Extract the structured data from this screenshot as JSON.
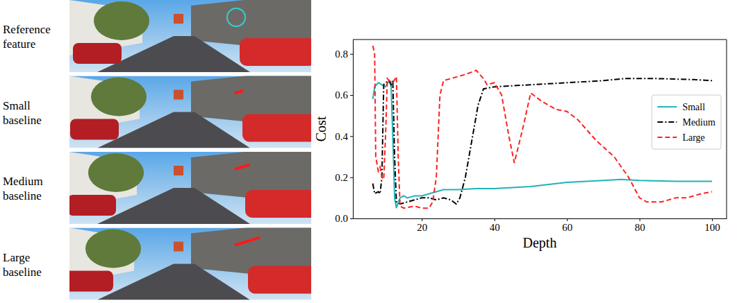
{
  "chart_data": {
    "type": "line",
    "xlabel": "Depth",
    "ylabel": "Cost",
    "xlim": [
      1,
      104
    ],
    "ylim": [
      0,
      0.87
    ],
    "xticks": [
      20,
      40,
      60,
      80,
      100
    ],
    "yticks": [
      {
        "value": 0,
        "label": "0.0"
      },
      0.2,
      0.4,
      0.6,
      0.8
    ],
    "grid": false,
    "legend": "center right",
    "series": [
      {
        "name": "Small",
        "color": "#1fb3b8",
        "line_style": "solid",
        "x": [
          6.5,
          7,
          8,
          9,
          10,
          11,
          11.5,
          12,
          12.5,
          13,
          13.5,
          14,
          15,
          16,
          18,
          20,
          22,
          24,
          26,
          30,
          35,
          40,
          50,
          60,
          70,
          75,
          80,
          90,
          100
        ],
        "values": [
          0.58,
          0.64,
          0.66,
          0.65,
          0.64,
          0.67,
          0.66,
          0.4,
          0.1,
          0.05,
          0.08,
          0.1,
          0.11,
          0.1,
          0.11,
          0.11,
          0.12,
          0.13,
          0.14,
          0.14,
          0.145,
          0.145,
          0.155,
          0.175,
          0.185,
          0.19,
          0.185,
          0.18,
          0.18
        ]
      },
      {
        "name": "Medium",
        "color": "#000000",
        "line_style": "dashdot",
        "x": [
          6.5,
          7,
          8,
          8.5,
          9,
          9.5,
          10,
          11,
          11.5,
          12,
          12.5,
          13,
          14,
          16,
          18,
          20,
          22,
          24,
          26,
          28,
          29.5,
          30.5,
          32,
          34,
          35.5,
          37,
          40,
          50,
          60,
          70,
          76,
          85,
          95,
          100
        ],
        "values": [
          0.17,
          0.12,
          0.13,
          0.12,
          0.2,
          0.65,
          0.66,
          0.67,
          0.65,
          0.67,
          0.3,
          0.08,
          0.07,
          0.08,
          0.09,
          0.1,
          0.1,
          0.09,
          0.1,
          0.09,
          0.07,
          0.1,
          0.2,
          0.4,
          0.55,
          0.63,
          0.64,
          0.65,
          0.66,
          0.67,
          0.68,
          0.68,
          0.675,
          0.67
        ]
      },
      {
        "name": "Large",
        "color": "#ff2020",
        "line_style": "dashed",
        "x": [
          6.5,
          7,
          7.3,
          8,
          8.5,
          9,
          9.5,
          10,
          10.5,
          11,
          12,
          13,
          13.5,
          14,
          15,
          18,
          20,
          22,
          23,
          24,
          25,
          26,
          28,
          32,
          35,
          37,
          38,
          40,
          42,
          44,
          45.5,
          48,
          50,
          53,
          57,
          60,
          63,
          68,
          73,
          77,
          80,
          82,
          86,
          90,
          93,
          97,
          100
        ],
        "values": [
          0.84,
          0.8,
          0.3,
          0.23,
          0.25,
          0.2,
          0.19,
          0.4,
          0.68,
          0.67,
          0.66,
          0.69,
          0.3,
          0.06,
          0.05,
          0.06,
          0.05,
          0.05,
          0.08,
          0.2,
          0.6,
          0.67,
          0.68,
          0.7,
          0.72,
          0.68,
          0.65,
          0.66,
          0.6,
          0.4,
          0.27,
          0.45,
          0.61,
          0.57,
          0.53,
          0.52,
          0.48,
          0.38,
          0.3,
          0.2,
          0.1,
          0.08,
          0.08,
          0.1,
          0.1,
          0.12,
          0.13
        ]
      }
    ]
  },
  "image_panels": {
    "labels": [
      "Reference feature",
      "Small baseline",
      "Medium baseline",
      "Large baseline"
    ]
  }
}
